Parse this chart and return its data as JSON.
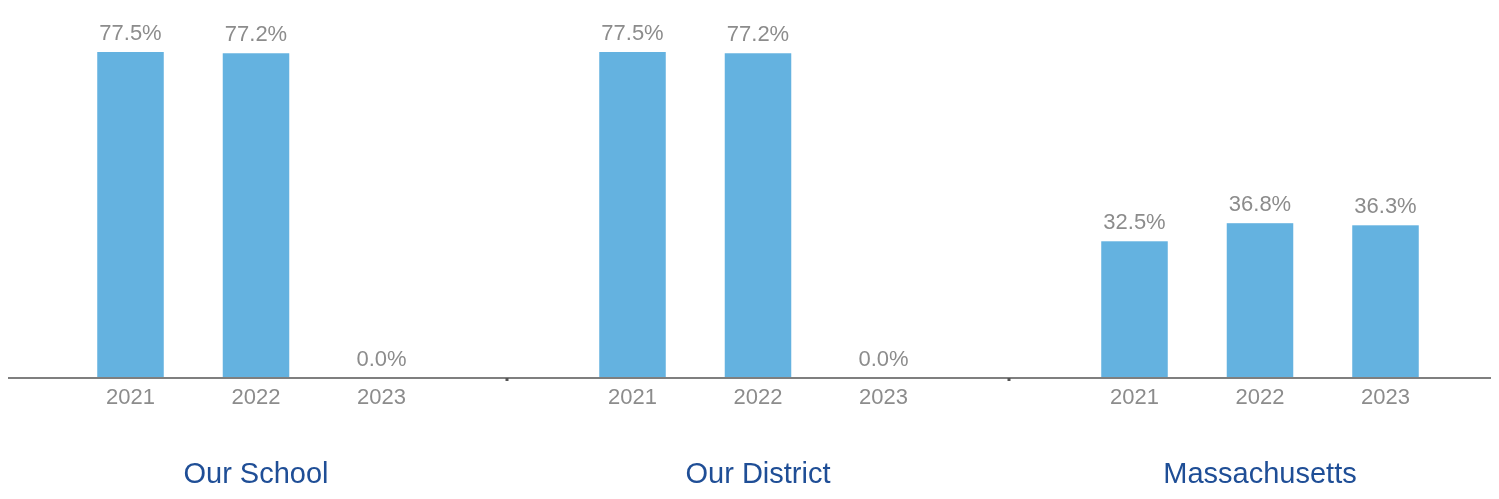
{
  "chart_data": [
    {
      "type": "bar",
      "xlabel": "Our School",
      "categories": [
        "2021",
        "2022",
        "2023"
      ],
      "values": [
        77.5,
        77.2,
        0.0
      ],
      "value_labels": [
        "77.5%",
        "77.2%",
        "0.0%"
      ],
      "color": "#64b2e0"
    },
    {
      "type": "bar",
      "xlabel": "Our District",
      "categories": [
        "2021",
        "2022",
        "2023"
      ],
      "values": [
        77.5,
        77.2,
        0.0
      ],
      "value_labels": [
        "77.5%",
        "77.2%",
        "0.0%"
      ],
      "color": "#64b2e0"
    },
    {
      "type": "bar",
      "xlabel": "Massachusetts",
      "categories": [
        "2021",
        "2022",
        "2023"
      ],
      "values": [
        32.5,
        36.8,
        36.3
      ],
      "value_labels": [
        "32.5%",
        "36.8%",
        "36.3%"
      ],
      "color": "#64b2e0"
    }
  ]
}
